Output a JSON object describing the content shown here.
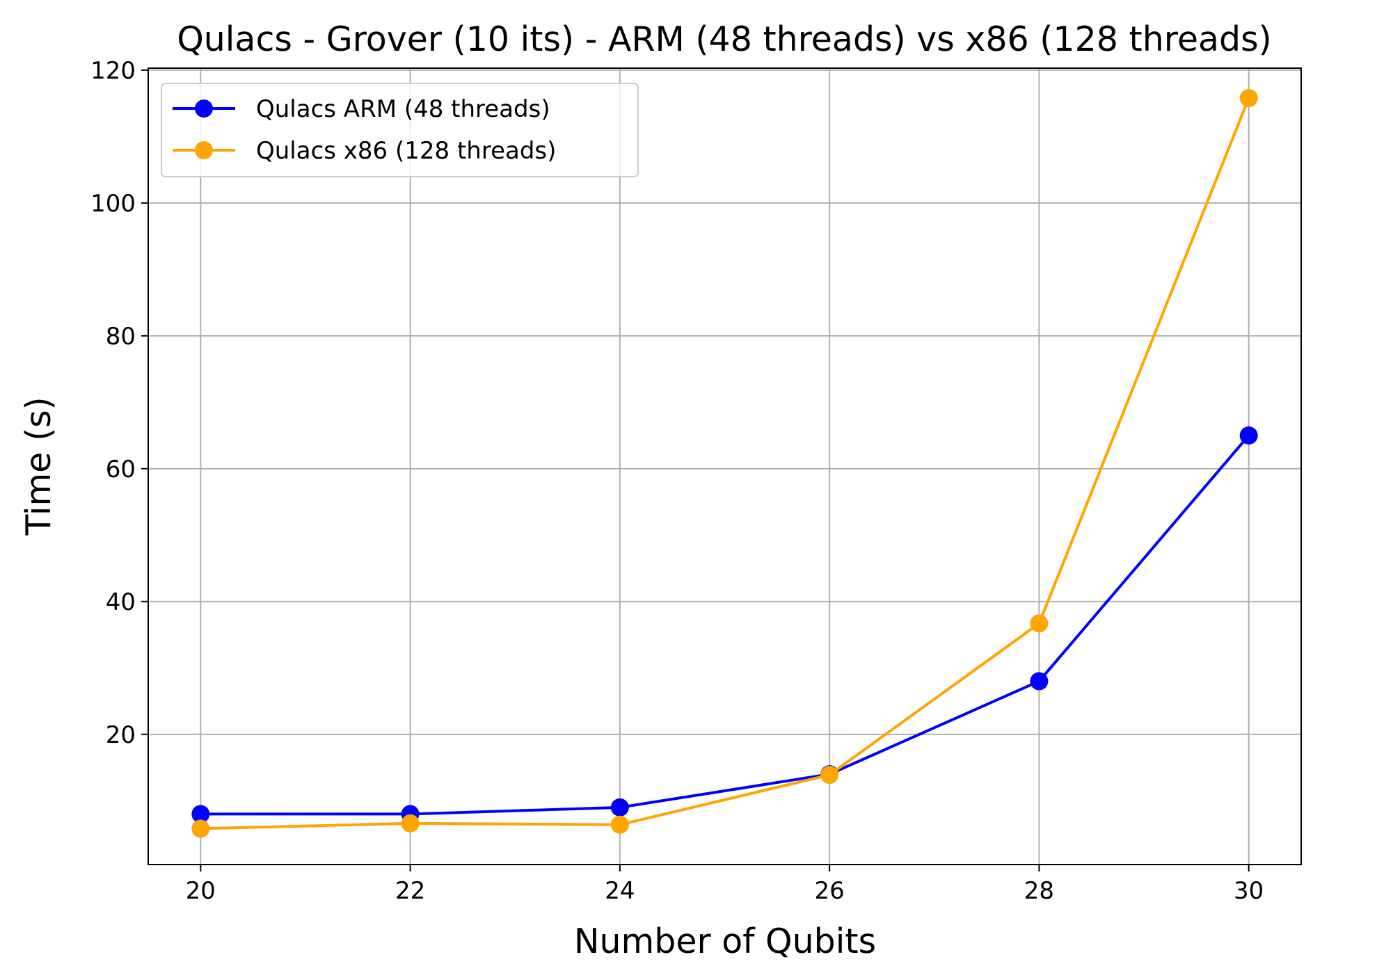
{
  "chart_data": {
    "type": "line",
    "title": "Qulacs - Grover (10 its) - ARM (48 threads) vs x86 (128 threads)",
    "xlabel": "Number of Qubits",
    "ylabel": "Time (s)",
    "x": [
      20,
      22,
      24,
      26,
      28,
      30
    ],
    "xlim": [
      19.5,
      30.5
    ],
    "ylim": [
      0.4,
      120.3
    ],
    "xticks": [
      20,
      22,
      24,
      26,
      28,
      30
    ],
    "yticks": [
      20,
      40,
      60,
      80,
      100,
      120
    ],
    "grid": true,
    "legend_position": "top-left",
    "series": [
      {
        "name": "Qulacs ARM (48 threads)",
        "color": "#0000ff",
        "marker": "circle",
        "values": [
          8.0,
          8.0,
          9.0,
          14.0,
          28.0,
          65.0
        ]
      },
      {
        "name": "Qulacs x86 (128 threads)",
        "color": "#ffa500",
        "marker": "circle",
        "values": [
          5.8,
          6.6,
          6.4,
          13.9,
          36.7,
          115.8
        ]
      }
    ]
  }
}
